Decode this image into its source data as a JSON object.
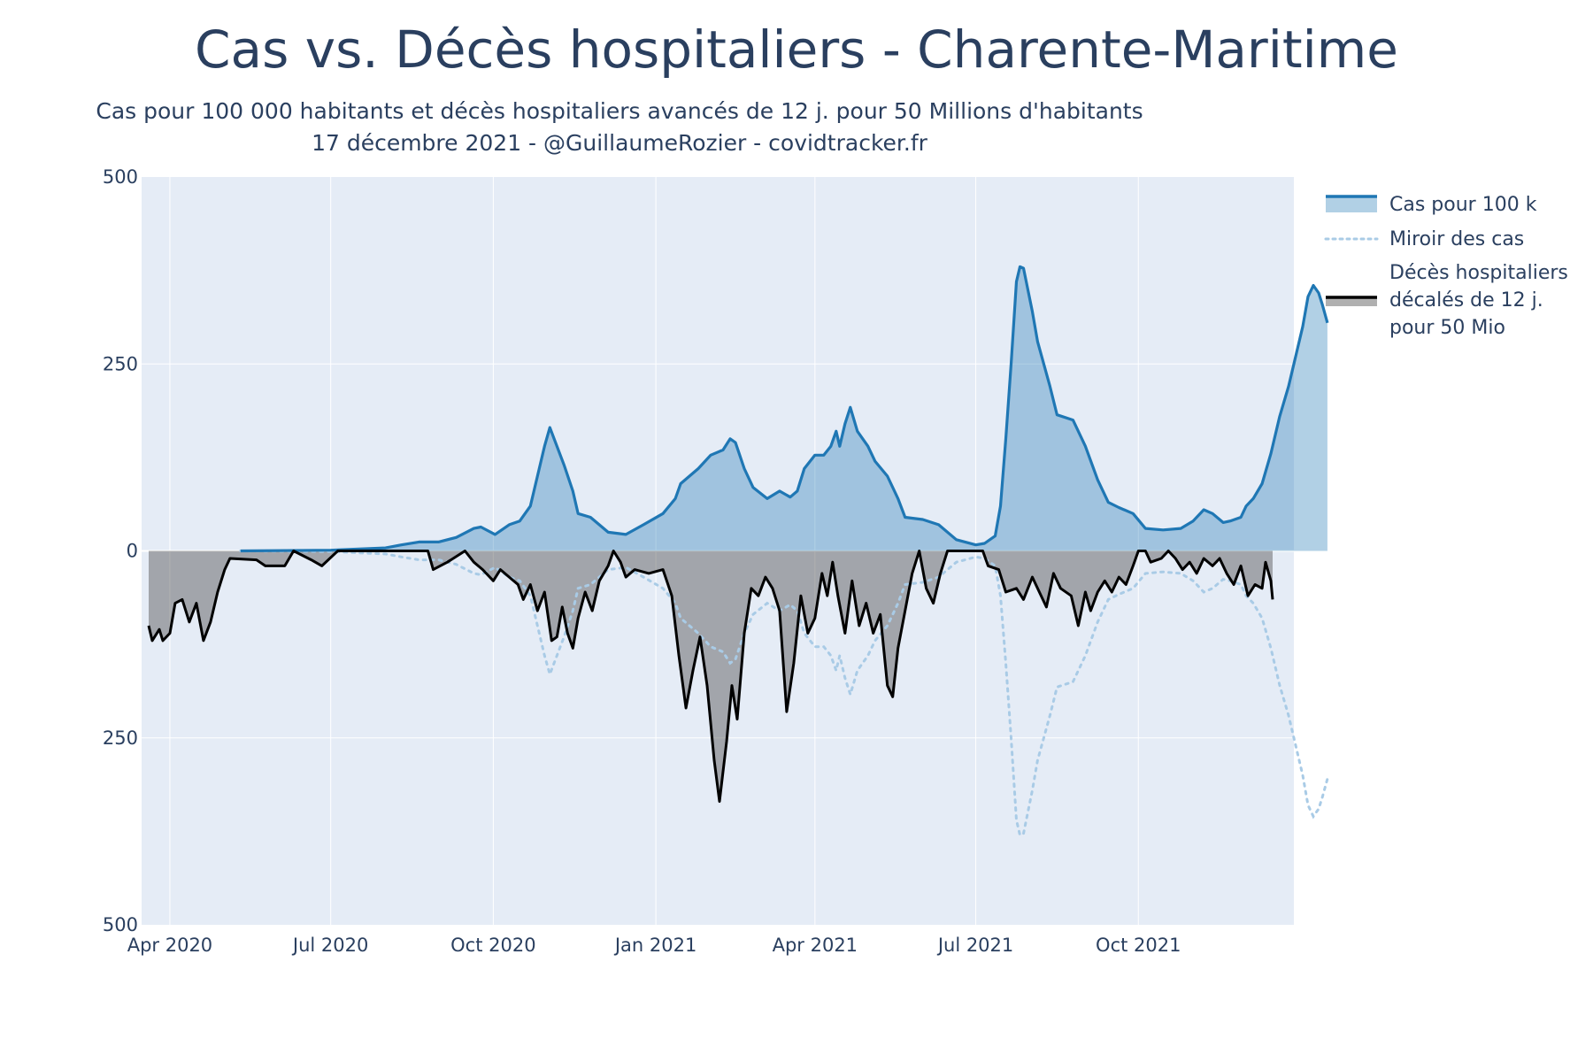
{
  "header": {
    "title": "Cas vs. Décès hospitaliers - Charente-Maritime",
    "subtitle_line1": "Cas pour 100 000 habitants et décès hospitaliers avancés de 12 j. pour 50 Millions d'habitants",
    "subtitle_line2": "17 décembre 2021 - @GuillaumeRozier - covidtracker.fr"
  },
  "colors": {
    "cases_line": "#1f77b4",
    "cases_fill": "rgba(31,119,180,0.35)",
    "mirror_line": "#a9cbe6",
    "deaths_line": "#000000",
    "deaths_fill": "rgba(80,80,80,0.45)",
    "plot_bg": "#e5ecf6",
    "grid": "#ffffff"
  },
  "chart_data": {
    "type": "area",
    "title": "Cas vs. Décès hospitaliers - Charente-Maritime",
    "x_range": [
      "2020-03-16",
      "2021-12-28"
    ],
    "ylim": [
      -500,
      500
    ],
    "y_ticks": [
      {
        "value": 500,
        "label": "500"
      },
      {
        "value": 250,
        "label": "250"
      },
      {
        "value": 0,
        "label": "0"
      },
      {
        "value": -250,
        "label": "250"
      },
      {
        "value": -500,
        "label": "500"
      }
    ],
    "x_ticks": [
      {
        "date": "2020-04-01",
        "label": "Apr 2020"
      },
      {
        "date": "2020-07-01",
        "label": "Jul 2020"
      },
      {
        "date": "2020-10-01",
        "label": "Oct 2020"
      },
      {
        "date": "2021-01-01",
        "label": "Jan 2021"
      },
      {
        "date": "2021-04-01",
        "label": "Apr 2021"
      },
      {
        "date": "2021-07-01",
        "label": "Jul 2021"
      },
      {
        "date": "2021-10-01",
        "label": "Oct 2021"
      }
    ],
    "grid": true,
    "legend_position": "top-right",
    "series": [
      {
        "name": "Cas pour 100 k",
        "style": "line+fill",
        "points": [
          [
            "2020-05-11",
            0
          ],
          [
            "2020-07-01",
            1
          ],
          [
            "2020-08-01",
            4
          ],
          [
            "2020-08-10",
            8
          ],
          [
            "2020-08-20",
            12
          ],
          [
            "2020-08-31",
            12
          ],
          [
            "2020-09-10",
            18
          ],
          [
            "2020-09-20",
            30
          ],
          [
            "2020-09-24",
            32
          ],
          [
            "2020-10-02",
            22
          ],
          [
            "2020-10-10",
            35
          ],
          [
            "2020-10-16",
            40
          ],
          [
            "2020-10-22",
            60
          ],
          [
            "2020-10-26",
            100
          ],
          [
            "2020-10-30",
            140
          ],
          [
            "2020-11-02",
            165
          ],
          [
            "2020-11-06",
            140
          ],
          [
            "2020-11-10",
            115
          ],
          [
            "2020-11-15",
            80
          ],
          [
            "2020-11-18",
            50
          ],
          [
            "2020-11-25",
            45
          ],
          [
            "2020-12-05",
            25
          ],
          [
            "2020-12-15",
            22
          ],
          [
            "2020-12-25",
            35
          ],
          [
            "2021-01-05",
            50
          ],
          [
            "2021-01-12",
            70
          ],
          [
            "2021-01-15",
            90
          ],
          [
            "2021-01-25",
            110
          ],
          [
            "2021-02-01",
            128
          ],
          [
            "2021-02-08",
            135
          ],
          [
            "2021-02-12",
            150
          ],
          [
            "2021-02-15",
            145
          ],
          [
            "2021-02-20",
            110
          ],
          [
            "2021-02-25",
            85
          ],
          [
            "2021-03-05",
            70
          ],
          [
            "2021-03-12",
            80
          ],
          [
            "2021-03-18",
            72
          ],
          [
            "2021-03-22",
            80
          ],
          [
            "2021-03-26",
            110
          ],
          [
            "2021-04-01",
            128
          ],
          [
            "2021-04-06",
            128
          ],
          [
            "2021-04-10",
            140
          ],
          [
            "2021-04-13",
            160
          ],
          [
            "2021-04-15",
            140
          ],
          [
            "2021-04-18",
            170
          ],
          [
            "2021-04-21",
            192
          ],
          [
            "2021-04-25",
            160
          ],
          [
            "2021-05-01",
            140
          ],
          [
            "2021-05-05",
            120
          ],
          [
            "2021-05-12",
            100
          ],
          [
            "2021-05-18",
            70
          ],
          [
            "2021-05-22",
            45
          ],
          [
            "2021-06-01",
            42
          ],
          [
            "2021-06-10",
            35
          ],
          [
            "2021-06-20",
            15
          ],
          [
            "2021-07-01",
            8
          ],
          [
            "2021-07-06",
            10
          ],
          [
            "2021-07-12",
            20
          ],
          [
            "2021-07-15",
            60
          ],
          [
            "2021-07-18",
            150
          ],
          [
            "2021-07-21",
            250
          ],
          [
            "2021-07-24",
            360
          ],
          [
            "2021-07-26",
            380
          ],
          [
            "2021-07-28",
            378
          ],
          [
            "2021-08-02",
            320
          ],
          [
            "2021-08-05",
            280
          ],
          [
            "2021-08-12",
            220
          ],
          [
            "2021-08-16",
            182
          ],
          [
            "2021-08-25",
            175
          ],
          [
            "2021-09-01",
            140
          ],
          [
            "2021-09-08",
            95
          ],
          [
            "2021-09-14",
            65
          ],
          [
            "2021-09-20",
            58
          ],
          [
            "2021-09-28",
            50
          ],
          [
            "2021-10-05",
            30
          ],
          [
            "2021-10-15",
            28
          ],
          [
            "2021-10-25",
            30
          ],
          [
            "2021-11-01",
            40
          ],
          [
            "2021-11-07",
            55
          ],
          [
            "2021-11-12",
            50
          ],
          [
            "2021-11-18",
            38
          ],
          [
            "2021-11-22",
            40
          ],
          [
            "2021-11-28",
            45
          ],
          [
            "2021-12-01",
            60
          ],
          [
            "2021-12-05",
            70
          ],
          [
            "2021-12-10",
            90
          ],
          [
            "2021-12-15",
            130
          ],
          [
            "2021-12-20",
            180
          ],
          [
            "2021-12-25",
            220
          ],
          [
            "2021-12-28",
            250
          ],
          [
            "2022-01-02",
            300
          ],
          [
            "2022-01-05",
            340
          ],
          [
            "2022-01-08",
            355
          ],
          [
            "2022-01-11",
            345
          ],
          [
            "2022-01-13",
            330
          ],
          [
            "2022-01-16",
            305
          ]
        ]
      },
      {
        "name": "Miroir des cas",
        "style": "dotted-mirror",
        "mirror_of": "Cas pour 100 k"
      },
      {
        "name": "Décès hospitaliers décalés de 12 j. pour 50 Mio",
        "style": "line+fill",
        "points": [
          [
            "2020-03-20",
            -100
          ],
          [
            "2020-03-22",
            -120
          ],
          [
            "2020-03-26",
            -105
          ],
          [
            "2020-03-28",
            -120
          ],
          [
            "2020-04-01",
            -110
          ],
          [
            "2020-04-04",
            -70
          ],
          [
            "2020-04-08",
            -65
          ],
          [
            "2020-04-12",
            -95
          ],
          [
            "2020-04-16",
            -70
          ],
          [
            "2020-04-20",
            -120
          ],
          [
            "2020-04-24",
            -95
          ],
          [
            "2020-04-28",
            -55
          ],
          [
            "2020-05-02",
            -25
          ],
          [
            "2020-05-05",
            -10
          ],
          [
            "2020-05-20",
            -12
          ],
          [
            "2020-05-25",
            -20
          ],
          [
            "2020-06-05",
            -20
          ],
          [
            "2020-06-10",
            0
          ],
          [
            "2020-06-20",
            -12
          ],
          [
            "2020-06-26",
            -20
          ],
          [
            "2020-07-05",
            0
          ],
          [
            "2020-08-25",
            0
          ],
          [
            "2020-08-28",
            -25
          ],
          [
            "2020-09-05",
            -15
          ],
          [
            "2020-09-15",
            0
          ],
          [
            "2020-09-20",
            -15
          ],
          [
            "2020-09-25",
            -25
          ],
          [
            "2020-10-01",
            -40
          ],
          [
            "2020-10-05",
            -25
          ],
          [
            "2020-10-10",
            -35
          ],
          [
            "2020-10-15",
            -45
          ],
          [
            "2020-10-18",
            -65
          ],
          [
            "2020-10-22",
            -45
          ],
          [
            "2020-10-26",
            -80
          ],
          [
            "2020-10-30",
            -55
          ],
          [
            "2020-11-03",
            -120
          ],
          [
            "2020-11-06",
            -115
          ],
          [
            "2020-11-09",
            -75
          ],
          [
            "2020-11-12",
            -110
          ],
          [
            "2020-11-15",
            -130
          ],
          [
            "2020-11-18",
            -90
          ],
          [
            "2020-11-22",
            -55
          ],
          [
            "2020-11-26",
            -80
          ],
          [
            "2020-11-30",
            -40
          ],
          [
            "2020-12-05",
            -20
          ],
          [
            "2020-12-08",
            0
          ],
          [
            "2020-12-12",
            -15
          ],
          [
            "2020-12-15",
            -35
          ],
          [
            "2020-12-20",
            -25
          ],
          [
            "2020-12-28",
            -30
          ],
          [
            "2021-01-05",
            -25
          ],
          [
            "2021-01-10",
            -60
          ],
          [
            "2021-01-14",
            -140
          ],
          [
            "2021-01-18",
            -210
          ],
          [
            "2021-01-22",
            -160
          ],
          [
            "2021-01-26",
            -115
          ],
          [
            "2021-01-30",
            -180
          ],
          [
            "2021-02-03",
            -280
          ],
          [
            "2021-02-06",
            -335
          ],
          [
            "2021-02-10",
            -255
          ],
          [
            "2021-02-13",
            -180
          ],
          [
            "2021-02-16",
            -225
          ],
          [
            "2021-02-20",
            -110
          ],
          [
            "2021-02-24",
            -50
          ],
          [
            "2021-02-28",
            -60
          ],
          [
            "2021-03-04",
            -35
          ],
          [
            "2021-03-08",
            -50
          ],
          [
            "2021-03-12",
            -80
          ],
          [
            "2021-03-16",
            -215
          ],
          [
            "2021-03-20",
            -150
          ],
          [
            "2021-03-24",
            -60
          ],
          [
            "2021-03-28",
            -110
          ],
          [
            "2021-04-01",
            -90
          ],
          [
            "2021-04-05",
            -30
          ],
          [
            "2021-04-08",
            -60
          ],
          [
            "2021-04-11",
            -15
          ],
          [
            "2021-04-14",
            -60
          ],
          [
            "2021-04-18",
            -110
          ],
          [
            "2021-04-22",
            -40
          ],
          [
            "2021-04-26",
            -100
          ],
          [
            "2021-04-30",
            -70
          ],
          [
            "2021-05-04",
            -110
          ],
          [
            "2021-05-08",
            -85
          ],
          [
            "2021-05-12",
            -180
          ],
          [
            "2021-05-15",
            -195
          ],
          [
            "2021-05-18",
            -130
          ],
          [
            "2021-05-22",
            -80
          ],
          [
            "2021-05-26",
            -30
          ],
          [
            "2021-05-30",
            0
          ],
          [
            "2021-06-03",
            -50
          ],
          [
            "2021-06-07",
            -70
          ],
          [
            "2021-06-11",
            -30
          ],
          [
            "2021-06-15",
            0
          ],
          [
            "2021-07-05",
            0
          ],
          [
            "2021-07-08",
            -20
          ],
          [
            "2021-07-14",
            -25
          ],
          [
            "2021-07-18",
            -55
          ],
          [
            "2021-07-24",
            -50
          ],
          [
            "2021-07-28",
            -65
          ],
          [
            "2021-08-02",
            -35
          ],
          [
            "2021-08-06",
            -55
          ],
          [
            "2021-08-10",
            -75
          ],
          [
            "2021-08-14",
            -30
          ],
          [
            "2021-08-18",
            -50
          ],
          [
            "2021-08-24",
            -60
          ],
          [
            "2021-08-28",
            -100
          ],
          [
            "2021-09-01",
            -55
          ],
          [
            "2021-09-04",
            -80
          ],
          [
            "2021-09-08",
            -55
          ],
          [
            "2021-09-12",
            -40
          ],
          [
            "2021-09-16",
            -55
          ],
          [
            "2021-09-20",
            -35
          ],
          [
            "2021-09-24",
            -45
          ],
          [
            "2021-09-28",
            -20
          ],
          [
            "2021-10-01",
            0
          ],
          [
            "2021-10-05",
            0
          ],
          [
            "2021-10-08",
            -15
          ],
          [
            "2021-10-14",
            -10
          ],
          [
            "2021-10-18",
            0
          ],
          [
            "2021-10-22",
            -10
          ],
          [
            "2021-10-26",
            -25
          ],
          [
            "2021-10-30",
            -15
          ],
          [
            "2021-11-03",
            -30
          ],
          [
            "2021-11-07",
            -10
          ],
          [
            "2021-11-12",
            -20
          ],
          [
            "2021-11-16",
            -10
          ],
          [
            "2021-11-20",
            -30
          ],
          [
            "2021-11-24",
            -45
          ],
          [
            "2021-11-28",
            -20
          ],
          [
            "2021-12-02",
            -60
          ],
          [
            "2021-12-06",
            -45
          ],
          [
            "2021-12-10",
            -50
          ],
          [
            "2021-12-12",
            -15
          ],
          [
            "2021-12-15",
            -40
          ],
          [
            "2021-12-16",
            -65
          ]
        ]
      }
    ]
  }
}
